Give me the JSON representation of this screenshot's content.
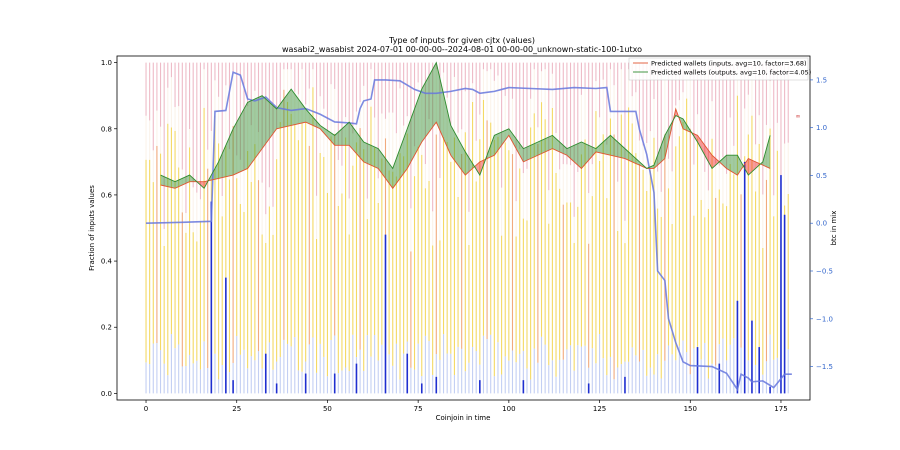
{
  "chart_data": {
    "type": "bar",
    "title": "Type of inputs for given cjtx (values)",
    "subtitle": "wasabi2_wasabist 2024-07-01 00-00-00--2024-08-01 00-00-00_unknown-static-100-1utxo",
    "xlabel": "Coinjoin in time",
    "ylabel": "Fraction of inputs values",
    "y2label": "btc in mix",
    "xlim": [
      -8,
      183
    ],
    "ylim": [
      -0.02,
      1.02
    ],
    "y2lim": [
      -1.85,
      1.75
    ],
    "xticks": [
      0,
      25,
      50,
      75,
      100,
      125,
      150,
      175
    ],
    "yticks": [
      0.0,
      0.2,
      0.4,
      0.6,
      0.8,
      1.0
    ],
    "y2ticks": [
      -1.5,
      -1.0,
      -0.5,
      0.0,
      0.5,
      1.0,
      1.5
    ],
    "ytick_labels": [
      "0.0",
      "0.2",
      "0.4",
      "0.6",
      "0.8",
      "1.0"
    ],
    "y2tick_labels": [
      "−1.5",
      "−1.0",
      "−0.5",
      "0.0",
      "0.5",
      "1.0",
      "1.5"
    ],
    "grid": false,
    "legend_position": "top-right",
    "right_annotation": "∞",
    "colors": {
      "stack_base": "#aabbee",
      "stack_mid": "#f2d24a",
      "stack_light": "#fbf3ea",
      "stack_top": "#e8a4b4",
      "stack_alt": "#ee9b66",
      "inputs_line": "#e05530",
      "outputs_line": "#2e8b2e",
      "btc_line": "#6677dd",
      "spike": "#1f2fd0",
      "fill_up": "#2e8b2e",
      "fill_down": "#ee2222"
    },
    "bars_count": 178,
    "btc_in_mix": {
      "x": [
        0,
        10,
        18,
        19,
        22,
        24,
        26,
        28,
        30,
        33,
        36,
        40,
        44,
        48,
        52,
        56,
        58,
        59,
        60,
        62,
        63,
        66,
        70,
        74,
        77,
        80,
        84,
        88,
        90,
        92,
        94,
        96,
        98,
        100,
        106,
        112,
        118,
        124,
        127,
        128,
        133,
        135,
        136,
        138,
        140,
        141,
        143,
        144,
        146,
        148,
        150,
        156,
        160,
        163,
        164,
        166,
        167,
        170,
        173,
        176,
        178
      ],
      "y": [
        0.0,
        0.01,
        0.02,
        1.17,
        1.18,
        1.58,
        1.55,
        1.3,
        1.28,
        1.32,
        1.21,
        1.18,
        1.2,
        1.14,
        1.06,
        1.05,
        1.04,
        1.2,
        1.28,
        1.3,
        1.5,
        1.5,
        1.49,
        1.4,
        1.36,
        1.36,
        1.38,
        1.41,
        1.4,
        1.36,
        1.37,
        1.38,
        1.4,
        1.42,
        1.41,
        1.4,
        1.42,
        1.41,
        1.42,
        1.17,
        1.17,
        1.17,
        0.98,
        0.72,
        0.32,
        -0.5,
        -0.6,
        -1.0,
        -1.25,
        -1.45,
        -1.49,
        -1.5,
        -1.57,
        -1.74,
        -1.58,
        -1.62,
        -1.66,
        -1.65,
        -1.72,
        -1.58,
        -1.58
      ]
    },
    "spikes": {
      "x": [
        18,
        22,
        24,
        33,
        36,
        44,
        52,
        58,
        66,
        72,
        76,
        80,
        92,
        104,
        122,
        132,
        152,
        158,
        163,
        165,
        167,
        169,
        172,
        175,
        176
      ],
      "y": [
        0.58,
        0.35,
        0.04,
        0.12,
        0.03,
        0.06,
        0.06,
        0.09,
        0.48,
        0.12,
        0.03,
        0.05,
        0.04,
        0.04,
        0.03,
        0.05,
        0.14,
        0.09,
        0.28,
        0.7,
        0.22,
        0.14,
        0.02,
        0.66,
        0.54
      ]
    },
    "series": [
      {
        "name": "Predicted wallets (inputs, avg=10, factor=3.68)",
        "x": [
          4,
          8,
          12,
          16,
          20,
          24,
          28,
          32,
          36,
          40,
          44,
          48,
          52,
          56,
          60,
          64,
          68,
          72,
          76,
          80,
          84,
          88,
          92,
          96,
          100,
          104,
          108,
          112,
          116,
          120,
          124,
          128,
          132,
          136,
          138,
          140,
          143,
          146,
          148,
          152,
          156,
          160,
          163,
          166,
          170,
          172
        ],
        "y": [
          0.63,
          0.62,
          0.64,
          0.64,
          0.65,
          0.66,
          0.68,
          0.74,
          0.8,
          0.81,
          0.82,
          0.8,
          0.75,
          0.75,
          0.7,
          0.68,
          0.62,
          0.68,
          0.76,
          0.82,
          0.72,
          0.66,
          0.7,
          0.72,
          0.78,
          0.7,
          0.72,
          0.74,
          0.72,
          0.68,
          0.73,
          0.72,
          0.71,
          0.69,
          0.68,
          0.68,
          0.71,
          0.86,
          0.8,
          0.78,
          0.72,
          0.68,
          0.66,
          0.71,
          0.69,
          0.68
        ]
      },
      {
        "name": "Predicted wallets (outputs, avg=10, factor=4.05)",
        "x": [
          4,
          8,
          12,
          16,
          20,
          24,
          28,
          32,
          36,
          40,
          44,
          48,
          52,
          56,
          60,
          64,
          68,
          72,
          76,
          80,
          84,
          88,
          92,
          96,
          100,
          104,
          108,
          112,
          116,
          120,
          124,
          128,
          132,
          136,
          138,
          140,
          143,
          146,
          148,
          152,
          156,
          160,
          163,
          166,
          170,
          172
        ],
        "y": [
          0.66,
          0.64,
          0.66,
          0.62,
          0.7,
          0.8,
          0.88,
          0.9,
          0.86,
          0.92,
          0.86,
          0.81,
          0.78,
          0.82,
          0.76,
          0.74,
          0.68,
          0.8,
          0.92,
          1.0,
          0.81,
          0.73,
          0.66,
          0.78,
          0.8,
          0.74,
          0.76,
          0.78,
          0.74,
          0.76,
          0.74,
          0.78,
          0.74,
          0.7,
          0.68,
          0.69,
          0.78,
          0.84,
          0.83,
          0.76,
          0.68,
          0.72,
          0.72,
          0.66,
          0.7,
          0.78
        ]
      }
    ]
  }
}
